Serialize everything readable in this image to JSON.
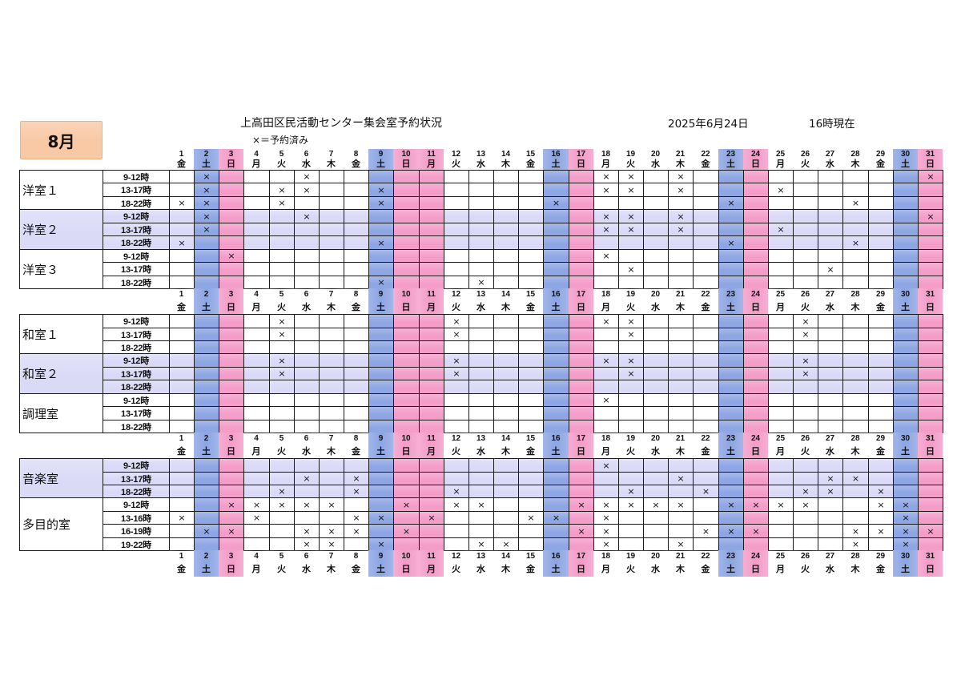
{
  "month_label": "8月",
  "title": "上高田区民活動センター集会室予約状況",
  "as_of_date": "2025年6月24日",
  "as_of_time": "16時現在",
  "legend": "×＝予約済み",
  "reserved_mark": "×",
  "colors": {
    "month_box": "#f9c8a4",
    "saturday": "#8ea6e3",
    "sunday_holiday": "#f49dc9",
    "highlight_row": "#dadaf7"
  },
  "days": [
    {
      "day": "1",
      "weekday": "金",
      "fill": null
    },
    {
      "day": "2",
      "weekday": "土",
      "fill": "#8ea6e3"
    },
    {
      "day": "3",
      "weekday": "日",
      "fill": "#f49dc9"
    },
    {
      "day": "4",
      "weekday": "月",
      "fill": null
    },
    {
      "day": "5",
      "weekday": "火",
      "fill": null
    },
    {
      "day": "6",
      "weekday": "水",
      "fill": null
    },
    {
      "day": "7",
      "weekday": "木",
      "fill": null
    },
    {
      "day": "8",
      "weekday": "金",
      "fill": null
    },
    {
      "day": "9",
      "weekday": "土",
      "fill": "#8ea6e3"
    },
    {
      "day": "10",
      "weekday": "日",
      "fill": "#f49dc9"
    },
    {
      "day": "11",
      "weekday": "月",
      "fill": "#f49dc9"
    },
    {
      "day": "12",
      "weekday": "火",
      "fill": null
    },
    {
      "day": "13",
      "weekday": "水",
      "fill": null
    },
    {
      "day": "14",
      "weekday": "木",
      "fill": null
    },
    {
      "day": "15",
      "weekday": "金",
      "fill": null
    },
    {
      "day": "16",
      "weekday": "土",
      "fill": "#8ea6e3"
    },
    {
      "day": "17",
      "weekday": "日",
      "fill": "#f49dc9"
    },
    {
      "day": "18",
      "weekday": "月",
      "fill": null
    },
    {
      "day": "19",
      "weekday": "火",
      "fill": null
    },
    {
      "day": "20",
      "weekday": "水",
      "fill": null
    },
    {
      "day": "21",
      "weekday": "木",
      "fill": null
    },
    {
      "day": "22",
      "weekday": "金",
      "fill": null
    },
    {
      "day": "23",
      "weekday": "土",
      "fill": "#8ea6e3"
    },
    {
      "day": "24",
      "weekday": "日",
      "fill": "#f49dc9"
    },
    {
      "day": "25",
      "weekday": "月",
      "fill": null
    },
    {
      "day": "26",
      "weekday": "火",
      "fill": null
    },
    {
      "day": "27",
      "weekday": "水",
      "fill": null
    },
    {
      "day": "28",
      "weekday": "木",
      "fill": null
    },
    {
      "day": "29",
      "weekday": "金",
      "fill": null
    },
    {
      "day": "30",
      "weekday": "土",
      "fill": "#8ea6e3"
    },
    {
      "day": "31",
      "weekday": "日",
      "fill": "#f49dc9"
    }
  ],
  "sections": [
    {
      "rooms": [
        {
          "name": "洋室１",
          "fill": null,
          "slots": [
            {
              "time": "9-12時",
              "reserved": [
                2,
                6,
                18,
                19,
                21,
                31
              ]
            },
            {
              "time": "13-17時",
              "reserved": [
                2,
                5,
                6,
                9,
                18,
                19,
                21,
                25
              ]
            },
            {
              "time": "18-22時",
              "reserved": [
                1,
                2,
                5,
                9,
                16,
                23,
                28
              ]
            }
          ]
        },
        {
          "name": "洋室２",
          "fill": "#dadaf7",
          "slots": [
            {
              "time": "9-12時",
              "reserved": [
                2,
                6,
                18,
                19,
                21,
                31
              ]
            },
            {
              "time": "13-17時",
              "reserved": [
                2,
                18,
                19,
                21,
                25
              ]
            },
            {
              "time": "18-22時",
              "reserved": [
                1,
                9,
                23,
                28
              ]
            }
          ]
        },
        {
          "name": "洋室３",
          "fill": null,
          "slots": [
            {
              "time": "9-12時",
              "reserved": [
                3,
                18
              ]
            },
            {
              "time": "13-17時",
              "reserved": [
                19,
                27
              ]
            },
            {
              "time": "18-22時",
              "reserved": [
                9,
                13
              ]
            }
          ]
        }
      ]
    },
    {
      "rooms": [
        {
          "name": "和室１",
          "fill": null,
          "slots": [
            {
              "time": "9-12時",
              "reserved": [
                5,
                12,
                18,
                19,
                26
              ]
            },
            {
              "time": "13-17時",
              "reserved": [
                5,
                12,
                19,
                26
              ]
            },
            {
              "time": "18-22時",
              "reserved": []
            }
          ]
        },
        {
          "name": "和室２",
          "fill": "#dadaf7",
          "slots": [
            {
              "time": "9-12時",
              "reserved": [
                5,
                12,
                18,
                19,
                26
              ]
            },
            {
              "time": "13-17時",
              "reserved": [
                5,
                12,
                19,
                26
              ]
            },
            {
              "time": "18-22時",
              "reserved": []
            }
          ]
        },
        {
          "name": "調理室",
          "fill": null,
          "slots": [
            {
              "time": "9-12時",
              "reserved": [
                18
              ]
            },
            {
              "time": "13-17時",
              "reserved": []
            },
            {
              "time": "18-22時",
              "reserved": []
            }
          ]
        }
      ]
    },
    {
      "rooms": [
        {
          "name": "音楽室",
          "fill": "#dadaf7",
          "slots": [
            {
              "time": "9-12時",
              "reserved": [
                18
              ]
            },
            {
              "time": "13-17時",
              "reserved": [
                6,
                8,
                21,
                27,
                28
              ]
            },
            {
              "time": "18-22時",
              "reserved": [
                5,
                8,
                12,
                19,
                22,
                26,
                27,
                29
              ]
            }
          ]
        },
        {
          "name": "多目的室",
          "fill": null,
          "slots": [
            {
              "time": "9-12時",
              "reserved": [
                3,
                4,
                5,
                6,
                7,
                10,
                12,
                13,
                17,
                18,
                19,
                20,
                21,
                23,
                24,
                25,
                26,
                29,
                30
              ]
            },
            {
              "time": "13-16時",
              "reserved": [
                1,
                4,
                8,
                9,
                11,
                15,
                16,
                18,
                30
              ]
            },
            {
              "time": "16-19時",
              "reserved": [
                2,
                3,
                6,
                7,
                8,
                10,
                17,
                18,
                22,
                23,
                24,
                28,
                29,
                30,
                31
              ]
            },
            {
              "time": "19-22時",
              "reserved": [
                6,
                7,
                9,
                13,
                14,
                18,
                21,
                28,
                30
              ]
            }
          ]
        }
      ]
    }
  ]
}
